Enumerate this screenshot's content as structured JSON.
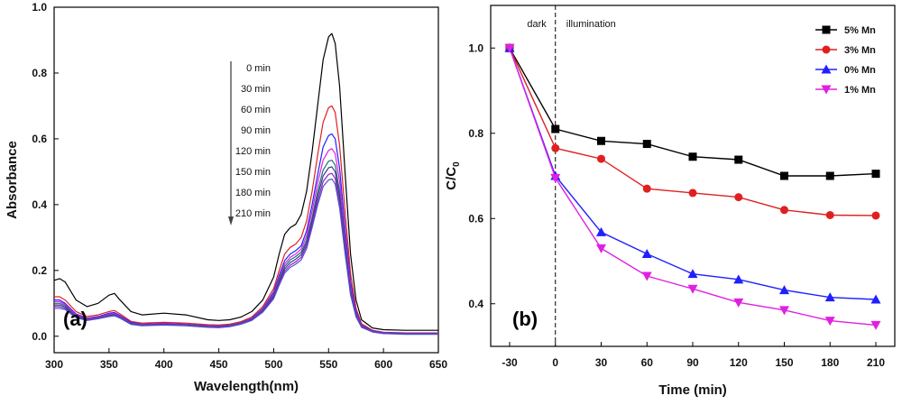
{
  "chart_data": [
    {
      "type": "line",
      "panel_label": "(a)",
      "xlabel": "Wavelength(nm)",
      "ylabel": "Absorbance",
      "xlim": [
        300,
        650
      ],
      "ylim": [
        -0.05,
        1.0
      ],
      "x_ticks": [
        "300",
        "350",
        "400",
        "450",
        "500",
        "550",
        "600",
        "650"
      ],
      "y_ticks": [
        "0.0",
        "0.2",
        "0.4",
        "0.6",
        "0.8",
        "1.0"
      ],
      "time_labels": [
        "0 min",
        "30 min",
        "60 min",
        "90 min",
        "120 min",
        "150 min",
        "180 min",
        "210 min"
      ],
      "arrow": "downward",
      "x": [
        300,
        305,
        310,
        320,
        330,
        340,
        350,
        355,
        360,
        370,
        380,
        400,
        420,
        440,
        450,
        460,
        470,
        480,
        490,
        500,
        505,
        510,
        515,
        520,
        525,
        530,
        535,
        540,
        545,
        550,
        553,
        556,
        560,
        565,
        570,
        575,
        580,
        590,
        600,
        620,
        650
      ],
      "series": [
        {
          "color": "#000000",
          "values": [
            0.17,
            0.175,
            0.165,
            0.11,
            0.09,
            0.1,
            0.125,
            0.13,
            0.11,
            0.075,
            0.065,
            0.07,
            0.065,
            0.05,
            0.048,
            0.05,
            0.058,
            0.075,
            0.11,
            0.18,
            0.25,
            0.31,
            0.33,
            0.34,
            0.37,
            0.44,
            0.56,
            0.7,
            0.84,
            0.91,
            0.92,
            0.89,
            0.76,
            0.5,
            0.25,
            0.11,
            0.05,
            0.025,
            0.02,
            0.018,
            0.018
          ]
        },
        {
          "color": "#e02020",
          "values": [
            0.12,
            0.12,
            0.11,
            0.075,
            0.06,
            0.065,
            0.075,
            0.078,
            0.068,
            0.045,
            0.04,
            0.042,
            0.04,
            0.035,
            0.034,
            0.037,
            0.044,
            0.058,
            0.09,
            0.145,
            0.2,
            0.25,
            0.27,
            0.28,
            0.3,
            0.35,
            0.44,
            0.55,
            0.65,
            0.695,
            0.7,
            0.68,
            0.58,
            0.38,
            0.19,
            0.085,
            0.038,
            0.018,
            0.012,
            0.01,
            0.01
          ]
        },
        {
          "color": "#2020ff",
          "values": [
            0.11,
            0.11,
            0.1,
            0.068,
            0.055,
            0.06,
            0.07,
            0.072,
            0.063,
            0.042,
            0.037,
            0.039,
            0.037,
            0.032,
            0.031,
            0.034,
            0.041,
            0.054,
            0.084,
            0.135,
            0.185,
            0.23,
            0.25,
            0.26,
            0.275,
            0.32,
            0.4,
            0.49,
            0.575,
            0.61,
            0.615,
            0.6,
            0.51,
            0.33,
            0.165,
            0.075,
            0.034,
            0.016,
            0.011,
            0.009,
            0.009
          ]
        },
        {
          "color": "#e020e0",
          "values": [
            0.105,
            0.105,
            0.097,
            0.065,
            0.053,
            0.058,
            0.067,
            0.069,
            0.06,
            0.04,
            0.036,
            0.038,
            0.036,
            0.031,
            0.03,
            0.033,
            0.04,
            0.052,
            0.081,
            0.13,
            0.178,
            0.22,
            0.24,
            0.25,
            0.265,
            0.305,
            0.38,
            0.465,
            0.535,
            0.565,
            0.57,
            0.555,
            0.47,
            0.305,
            0.152,
            0.07,
            0.032,
            0.015,
            0.01,
            0.008,
            0.008
          ]
        },
        {
          "color": "#207070",
          "values": [
            0.1,
            0.1,
            0.093,
            0.062,
            0.051,
            0.056,
            0.065,
            0.067,
            0.058,
            0.039,
            0.035,
            0.037,
            0.035,
            0.03,
            0.029,
            0.032,
            0.039,
            0.051,
            0.079,
            0.126,
            0.172,
            0.212,
            0.232,
            0.242,
            0.256,
            0.292,
            0.36,
            0.44,
            0.505,
            0.532,
            0.535,
            0.52,
            0.44,
            0.285,
            0.142,
            0.066,
            0.03,
            0.014,
            0.009,
            0.008,
            0.008
          ]
        },
        {
          "color": "#3a3a90",
          "values": [
            0.095,
            0.095,
            0.089,
            0.06,
            0.05,
            0.055,
            0.063,
            0.065,
            0.057,
            0.038,
            0.034,
            0.036,
            0.034,
            0.029,
            0.028,
            0.031,
            0.038,
            0.05,
            0.077,
            0.122,
            0.166,
            0.205,
            0.224,
            0.234,
            0.248,
            0.283,
            0.35,
            0.425,
            0.487,
            0.512,
            0.515,
            0.5,
            0.423,
            0.274,
            0.137,
            0.064,
            0.029,
            0.014,
            0.009,
            0.007,
            0.007
          ]
        },
        {
          "color": "#9020c0",
          "values": [
            0.09,
            0.09,
            0.085,
            0.058,
            0.049,
            0.054,
            0.062,
            0.064,
            0.056,
            0.037,
            0.033,
            0.035,
            0.033,
            0.028,
            0.027,
            0.03,
            0.037,
            0.049,
            0.075,
            0.118,
            0.16,
            0.198,
            0.216,
            0.226,
            0.24,
            0.275,
            0.34,
            0.41,
            0.47,
            0.492,
            0.495,
            0.48,
            0.405,
            0.262,
            0.131,
            0.061,
            0.028,
            0.013,
            0.008,
            0.007,
            0.007
          ]
        },
        {
          "color": "#5050d0",
          "values": [
            0.085,
            0.085,
            0.081,
            0.056,
            0.048,
            0.053,
            0.06,
            0.062,
            0.055,
            0.036,
            0.032,
            0.034,
            0.032,
            0.027,
            0.026,
            0.029,
            0.036,
            0.048,
            0.073,
            0.114,
            0.155,
            0.192,
            0.209,
            0.219,
            0.232,
            0.266,
            0.33,
            0.398,
            0.455,
            0.475,
            0.478,
            0.463,
            0.39,
            0.252,
            0.126,
            0.059,
            0.027,
            0.013,
            0.008,
            0.006,
            0.006
          ]
        }
      ]
    },
    {
      "type": "line",
      "panel_label": "(b)",
      "xlabel": "Time (min)",
      "ylabel_main": "C/C",
      "ylabel_sub": "0",
      "xlim": [
        -30,
        210
      ],
      "ylim": [
        0.3,
        1.1
      ],
      "x_ticks": [
        "-30",
        "0",
        "30",
        "60",
        "90",
        "120",
        "150",
        "180",
        "210"
      ],
      "y_ticks": [
        "0.4",
        "0.6",
        "0.8",
        "1.0"
      ],
      "annotations": {
        "dark": "dark",
        "illumination": "illumination"
      },
      "x": [
        -30,
        0,
        30,
        60,
        90,
        120,
        150,
        180,
        210
      ],
      "series": [
        {
          "name": "5% Mn",
          "color": "#000000",
          "marker": "square",
          "values": [
            1.0,
            0.81,
            0.782,
            0.775,
            0.745,
            0.738,
            0.7,
            0.7,
            0.705
          ]
        },
        {
          "name": "3% Mn",
          "color": "#e02020",
          "marker": "circle",
          "values": [
            1.0,
            0.765,
            0.74,
            0.67,
            0.66,
            0.65,
            0.62,
            0.608,
            0.607
          ]
        },
        {
          "name": "0% Mn",
          "color": "#2020ff",
          "marker": "triangle-up",
          "values": [
            1.0,
            0.7,
            0.568,
            0.517,
            0.47,
            0.457,
            0.432,
            0.415,
            0.41
          ]
        },
        {
          "name": "1% Mn",
          "color": "#e020e0",
          "marker": "triangle-down",
          "values": [
            1.0,
            0.695,
            0.53,
            0.465,
            0.435,
            0.403,
            0.385,
            0.36,
            0.35
          ]
        }
      ],
      "legend_position": "top-right"
    }
  ]
}
